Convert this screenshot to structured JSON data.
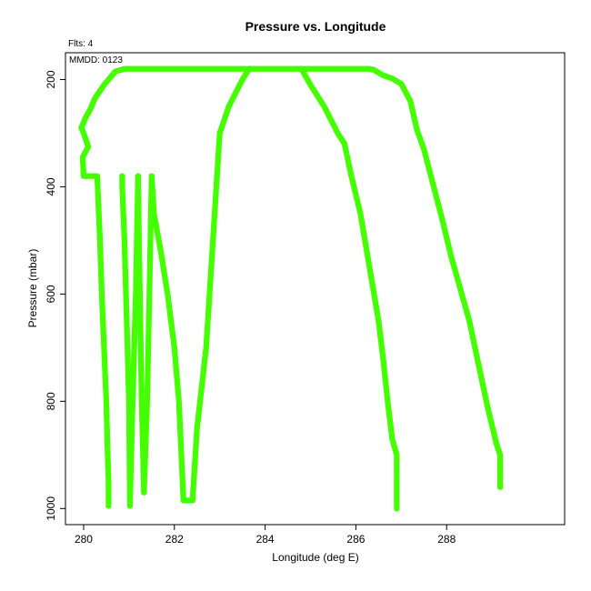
{
  "chart_data": {
    "type": "scatter",
    "title": "Pressure vs. Longitude",
    "xlabel": "Longitude (deg E)",
    "ylabel": "Pressure (mbar)",
    "flights_note": "Flts: 4",
    "date_note": "MMDD: 0123",
    "xlim": [
      279.6,
      290.6
    ],
    "ylim": [
      1030,
      150
    ],
    "y_reversed": true,
    "grid": false,
    "xticks": [
      280,
      282,
      284,
      286,
      288
    ],
    "xtick_labels": [
      "280",
      "282",
      "284",
      "286",
      "288"
    ],
    "yticks": [
      200,
      400,
      600,
      800,
      1000
    ],
    "ytick_labels": [
      "200",
      "400",
      "600",
      "800",
      "1000"
    ],
    "marker_color": "#44ff00",
    "series": [
      {
        "values": [
          [
            280.55,
            995
          ],
          [
            280.55,
            950
          ],
          [
            280.53,
            900
          ],
          [
            280.5,
            800
          ],
          [
            280.45,
            700
          ],
          [
            280.4,
            600
          ],
          [
            280.36,
            500
          ],
          [
            280.33,
            440
          ],
          [
            280.3,
            380
          ],
          [
            280.2,
            380
          ],
          [
            280.0,
            380
          ],
          [
            279.98,
            345
          ],
          [
            280.1,
            325
          ],
          [
            280.0,
            300
          ],
          [
            279.95,
            290
          ],
          [
            280.05,
            270
          ],
          [
            280.15,
            255
          ],
          [
            280.25,
            235
          ],
          [
            280.45,
            210
          ],
          [
            280.7,
            185
          ],
          [
            280.9,
            180
          ],
          [
            281.5,
            180
          ],
          [
            282.5,
            180
          ],
          [
            283.5,
            180
          ],
          [
            284.0,
            180
          ],
          [
            284.8,
            180
          ],
          [
            285.5,
            180
          ],
          [
            286.3,
            180
          ],
          [
            286.4,
            182
          ],
          [
            286.6,
            192
          ],
          [
            286.8,
            198
          ],
          [
            287.0,
            208
          ],
          [
            287.2,
            240
          ],
          [
            287.35,
            295
          ],
          [
            287.5,
            330
          ],
          [
            287.7,
            395
          ],
          [
            287.9,
            460
          ],
          [
            288.1,
            530
          ],
          [
            288.3,
            590
          ],
          [
            288.5,
            650
          ],
          [
            288.7,
            730
          ],
          [
            288.9,
            810
          ],
          [
            289.1,
            880
          ],
          [
            289.18,
            900
          ],
          [
            289.18,
            960
          ]
        ]
      },
      {
        "values": [
          [
            280.85,
            380
          ],
          [
            280.85,
            400
          ],
          [
            280.9,
            500
          ],
          [
            280.95,
            650
          ],
          [
            281.0,
            800
          ],
          [
            281.02,
            995
          ],
          [
            281.08,
            800
          ],
          [
            281.15,
            600
          ],
          [
            281.2,
            380
          ],
          [
            281.22,
            500
          ],
          [
            281.28,
            800
          ],
          [
            281.33,
            970
          ],
          [
            281.4,
            800
          ],
          [
            281.45,
            600
          ],
          [
            281.5,
            380
          ],
          [
            281.55,
            450
          ],
          [
            281.7,
            520
          ],
          [
            281.85,
            600
          ],
          [
            282.0,
            700
          ],
          [
            282.1,
            800
          ],
          [
            282.2,
            985
          ],
          [
            282.4,
            985
          ],
          [
            282.5,
            850
          ],
          [
            282.7,
            700
          ],
          [
            282.85,
            500
          ],
          [
            283.0,
            300
          ],
          [
            283.2,
            250
          ],
          [
            283.5,
            200
          ],
          [
            283.65,
            180
          ]
        ]
      },
      {
        "values": [
          [
            284.8,
            180
          ],
          [
            285.0,
            210
          ],
          [
            285.3,
            250
          ],
          [
            285.6,
            300
          ],
          [
            285.75,
            320
          ],
          [
            285.9,
            380
          ],
          [
            286.1,
            450
          ],
          [
            286.3,
            550
          ],
          [
            286.5,
            650
          ],
          [
            286.6,
            720
          ],
          [
            286.7,
            800
          ],
          [
            286.8,
            870
          ],
          [
            286.9,
            900
          ],
          [
            286.9,
            950
          ],
          [
            286.9,
            1000
          ]
        ]
      }
    ]
  }
}
